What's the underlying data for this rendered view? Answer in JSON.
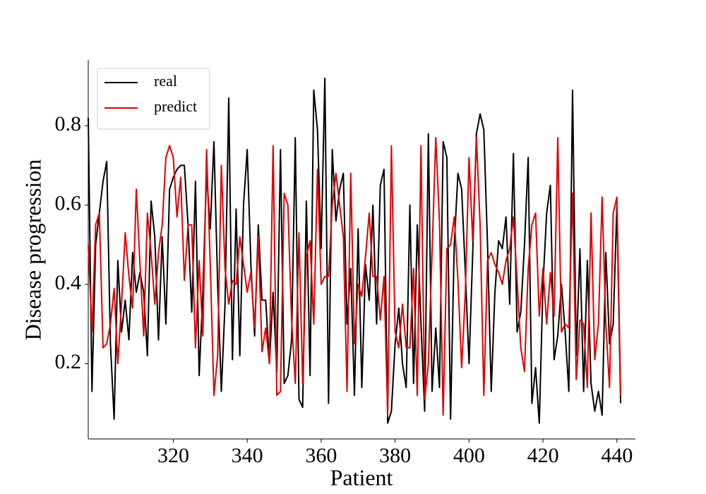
{
  "chart_data": {
    "type": "line",
    "xlabel": "Patient",
    "ylabel": "Disease progression",
    "x": [
      297,
      298,
      299,
      300,
      301,
      302,
      303,
      304,
      305,
      306,
      307,
      308,
      309,
      310,
      311,
      312,
      313,
      314,
      315,
      316,
      317,
      318,
      319,
      320,
      321,
      322,
      323,
      324,
      325,
      326,
      327,
      328,
      329,
      330,
      331,
      332,
      333,
      334,
      335,
      336,
      337,
      338,
      339,
      340,
      341,
      342,
      343,
      344,
      345,
      346,
      347,
      348,
      349,
      350,
      351,
      352,
      353,
      354,
      355,
      356,
      357,
      358,
      359,
      360,
      361,
      362,
      363,
      364,
      365,
      366,
      367,
      368,
      369,
      370,
      371,
      372,
      373,
      374,
      375,
      376,
      377,
      378,
      379,
      380,
      381,
      382,
      383,
      384,
      385,
      386,
      387,
      388,
      389,
      390,
      391,
      392,
      393,
      394,
      395,
      396,
      397,
      398,
      399,
      400,
      401,
      402,
      403,
      404,
      405,
      406,
      407,
      408,
      409,
      410,
      411,
      412,
      413,
      414,
      415,
      416,
      417,
      418,
      419,
      420,
      421,
      422,
      423,
      424,
      425,
      426,
      427,
      428,
      429,
      430,
      431,
      432,
      433,
      434,
      435,
      436,
      437,
      438,
      439,
      440,
      441
    ],
    "series": [
      {
        "name": "real",
        "color": "#000000",
        "values": [
          0.82,
          0.13,
          0.5,
          0.58,
          0.66,
          0.71,
          0.25,
          0.06,
          0.46,
          0.28,
          0.36,
          0.26,
          0.48,
          0.38,
          0.43,
          0.38,
          0.22,
          0.61,
          0.52,
          0.26,
          0.52,
          0.3,
          0.64,
          0.67,
          0.69,
          0.7,
          0.7,
          0.55,
          0.33,
          0.66,
          0.17,
          0.38,
          0.68,
          0.54,
          0.76,
          0.4,
          0.13,
          0.35,
          0.87,
          0.21,
          0.59,
          0.22,
          0.6,
          0.74,
          0.45,
          0.27,
          0.55,
          0.36,
          0.36,
          0.2,
          0.38,
          0.18,
          0.74,
          0.15,
          0.17,
          0.26,
          0.77,
          0.11,
          0.09,
          0.61,
          0.17,
          0.89,
          0.79,
          0.49,
          0.92,
          0.1,
          0.74,
          0.56,
          0.64,
          0.68,
          0.3,
          0.44,
          0.12,
          0.54,
          0.14,
          0.45,
          0.36,
          0.6,
          0.3,
          0.65,
          0.69,
          0.05,
          0.08,
          0.25,
          0.34,
          0.2,
          0.14,
          0.6,
          0.15,
          0.55,
          0.3,
          0.08,
          0.78,
          0.13,
          0.29,
          0.14,
          0.76,
          0.72,
          0.06,
          0.5,
          0.68,
          0.64,
          0.43,
          0.2,
          0.48,
          0.78,
          0.83,
          0.79,
          0.5,
          0.13,
          0.38,
          0.51,
          0.49,
          0.57,
          0.35,
          0.73,
          0.28,
          0.33,
          0.5,
          0.72,
          0.1,
          0.19,
          0.05,
          0.4,
          0.58,
          0.65,
          0.21,
          0.27,
          0.4,
          0.28,
          0.13,
          0.89,
          0.22,
          0.49,
          0.13,
          0.46,
          0.15,
          0.08,
          0.13,
          0.07,
          0.48,
          0.25,
          0.3,
          0.6,
          0.1
        ]
      },
      {
        "name": "predict",
        "color": "#e00000",
        "values": [
          0.5,
          0.28,
          0.55,
          0.58,
          0.24,
          0.25,
          0.3,
          0.39,
          0.2,
          0.35,
          0.53,
          0.42,
          0.34,
          0.64,
          0.45,
          0.27,
          0.58,
          0.48,
          0.35,
          0.48,
          0.55,
          0.72,
          0.75,
          0.72,
          0.57,
          0.67,
          0.41,
          0.55,
          0.55,
          0.24,
          0.46,
          0.27,
          0.74,
          0.45,
          0.12,
          0.22,
          0.7,
          0.44,
          0.35,
          0.41,
          0.4,
          0.52,
          0.45,
          0.38,
          0.43,
          0.29,
          0.52,
          0.23,
          0.29,
          0.2,
          0.75,
          0.12,
          0.13,
          0.63,
          0.6,
          0.31,
          0.15,
          0.53,
          0.15,
          0.47,
          0.51,
          0.3,
          0.69,
          0.4,
          0.42,
          0.42,
          0.6,
          0.68,
          0.6,
          0.52,
          0.13,
          0.68,
          0.25,
          0.4,
          0.37,
          0.47,
          0.58,
          0.42,
          0.42,
          0.31,
          0.42,
          0.07,
          0.75,
          0.28,
          0.24,
          0.35,
          0.24,
          0.24,
          0.44,
          0.12,
          0.75,
          0.11,
          0.2,
          0.48,
          0.77,
          0.56,
          0.07,
          0.49,
          0.5,
          0.57,
          0.41,
          0.19,
          0.38,
          0.72,
          0.51,
          0.77,
          0.55,
          0.12,
          0.46,
          0.48,
          0.45,
          0.43,
          0.4,
          0.46,
          0.49,
          0.57,
          0.41,
          0.24,
          0.18,
          0.44,
          0.55,
          0.58,
          0.32,
          0.44,
          0.3,
          0.43,
          0.32,
          0.77,
          0.28,
          0.3,
          0.29,
          0.63,
          0.16,
          0.31,
          0.3,
          0.14,
          0.58,
          0.21,
          0.3,
          0.62,
          0.3,
          0.14,
          0.58,
          0.62,
          0.12
        ]
      }
    ],
    "xlim": [
      297,
      445
    ],
    "ylim": [
      0.01,
      0.966
    ],
    "xticks": [
      320,
      340,
      360,
      380,
      400,
      420,
      440
    ],
    "yticks": [
      0.2,
      0.4,
      0.6,
      0.8
    ],
    "legend": "upper left",
    "grid": false
  }
}
